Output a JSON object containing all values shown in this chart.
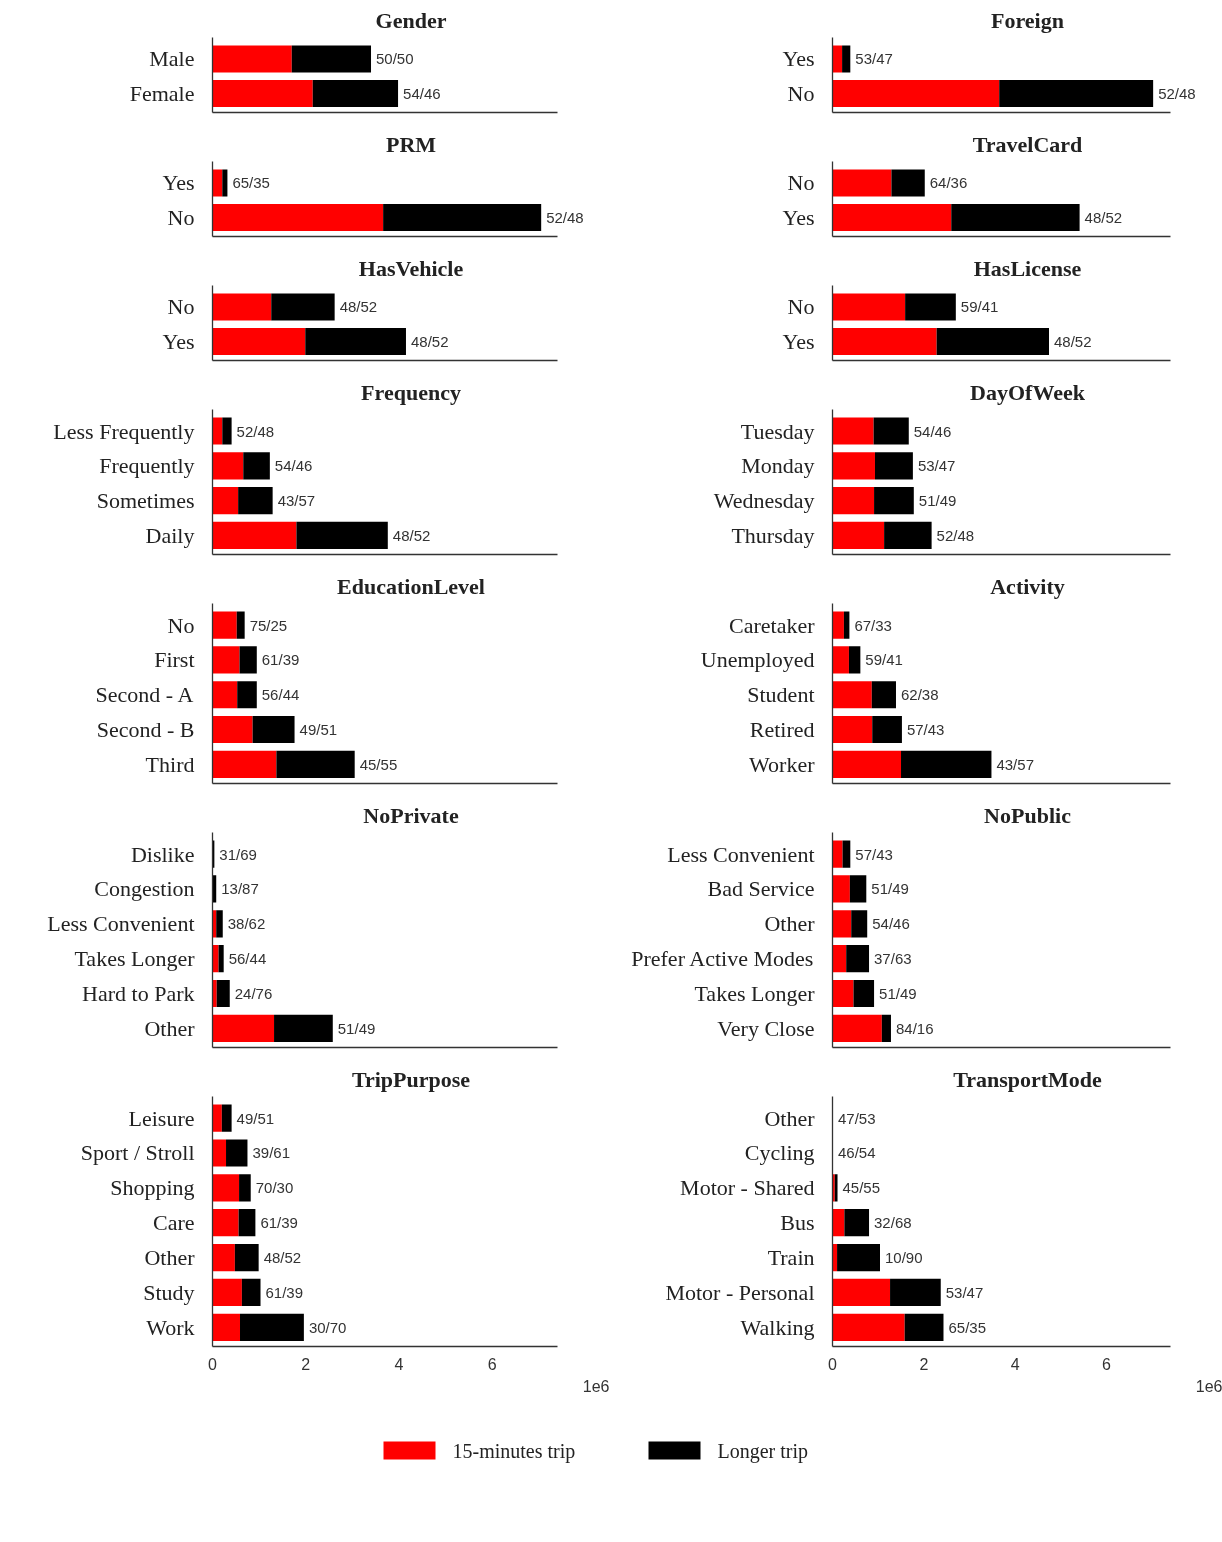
{
  "chart_data": [
    {
      "type": "bar",
      "orientation": "horizontal",
      "stacked": true,
      "title": "Gender",
      "categories": [
        "Male",
        "Female"
      ],
      "series": [
        {
          "color": "#ff0000",
          "values": [
            1.7,
            2.15
          ]
        },
        {
          "color": "#000000",
          "values": [
            1.7,
            1.83
          ],
          "value_labels": [
            "50/50",
            "54/46"
          ]
        }
      ],
      "xlim": [
        0,
        7.4
      ],
      "tick_labels": "y",
      "grid": false,
      "legend": false
    },
    {
      "type": "bar",
      "orientation": "horizontal",
      "stacked": true,
      "title": "Foreign",
      "categories": [
        "Yes",
        "No"
      ],
      "series": [
        {
          "color": "#ff0000",
          "values": [
            0.21,
            3.65
          ]
        },
        {
          "color": "#000000",
          "values": [
            0.18,
            3.37
          ],
          "value_labels": [
            "53/47",
            "52/48"
          ]
        }
      ],
      "xlim": [
        0,
        7.4
      ],
      "tick_labels": "y",
      "grid": false,
      "legend": false
    },
    {
      "type": "bar",
      "orientation": "horizontal",
      "stacked": true,
      "title": "PRM",
      "categories": [
        "Yes",
        "No"
      ],
      "series": [
        {
          "color": "#ff0000",
          "values": [
            0.21,
            3.66
          ]
        },
        {
          "color": "#000000",
          "values": [
            0.11,
            3.39
          ],
          "value_labels": [
            "65/35",
            "52/48"
          ]
        }
      ],
      "xlim": [
        0,
        7.4
      ],
      "tick_labels": "y",
      "grid": false,
      "legend": false
    },
    {
      "type": "bar",
      "orientation": "horizontal",
      "stacked": true,
      "title": "TravelCard",
      "categories": [
        "No",
        "Yes"
      ],
      "series": [
        {
          "color": "#ff0000",
          "values": [
            1.29,
            2.6
          ]
        },
        {
          "color": "#000000",
          "values": [
            0.73,
            2.81
          ],
          "value_labels": [
            "64/36",
            "48/52"
          ]
        }
      ],
      "xlim": [
        0,
        7.4
      ],
      "tick_labels": "y",
      "grid": false,
      "legend": false
    },
    {
      "type": "bar",
      "orientation": "horizontal",
      "stacked": true,
      "title": "HasVehicle",
      "categories": [
        "No",
        "Yes"
      ],
      "series": [
        {
          "color": "#ff0000",
          "values": [
            1.26,
            1.99
          ]
        },
        {
          "color": "#000000",
          "values": [
            1.36,
            2.16
          ],
          "value_labels": [
            "48/52",
            "48/52"
          ]
        }
      ],
      "xlim": [
        0,
        7.4
      ],
      "tick_labels": "y",
      "grid": false,
      "legend": false
    },
    {
      "type": "bar",
      "orientation": "horizontal",
      "stacked": true,
      "title": "HasLicense",
      "categories": [
        "No",
        "Yes"
      ],
      "series": [
        {
          "color": "#ff0000",
          "values": [
            1.59,
            2.28
          ]
        },
        {
          "color": "#000000",
          "values": [
            1.11,
            2.46
          ],
          "value_labels": [
            "59/41",
            "48/52"
          ]
        }
      ],
      "xlim": [
        0,
        7.4
      ],
      "tick_labels": "y",
      "grid": false,
      "legend": false
    },
    {
      "type": "bar",
      "orientation": "horizontal",
      "stacked": true,
      "title": "Frequency",
      "categories": [
        "Less Frequently",
        "Frequently",
        "Sometimes",
        "Daily"
      ],
      "series": [
        {
          "color": "#ff0000",
          "values": [
            0.21,
            0.66,
            0.55,
            1.8
          ]
        },
        {
          "color": "#000000",
          "values": [
            0.2,
            0.57,
            0.74,
            1.96
          ],
          "value_labels": [
            "52/48",
            "54/46",
            "43/57",
            "48/52"
          ]
        }
      ],
      "xlim": [
        0,
        7.4
      ],
      "tick_labels": "y",
      "grid": false,
      "legend": false
    },
    {
      "type": "bar",
      "orientation": "horizontal",
      "stacked": true,
      "title": "DayOfWeek",
      "categories": [
        "Tuesday",
        "Monday",
        "Wednesday",
        "Thursday"
      ],
      "series": [
        {
          "color": "#ff0000",
          "values": [
            0.9,
            0.93,
            0.91,
            1.13
          ]
        },
        {
          "color": "#000000",
          "values": [
            0.77,
            0.83,
            0.87,
            1.04
          ],
          "value_labels": [
            "54/46",
            "53/47",
            "51/49",
            "52/48"
          ]
        }
      ],
      "xlim": [
        0,
        7.4
      ],
      "tick_labels": "y",
      "grid": false,
      "legend": false
    },
    {
      "type": "bar",
      "orientation": "horizontal",
      "stacked": true,
      "title": "EducationLevel",
      "categories": [
        "No",
        "First",
        "Second - A",
        "Second - B",
        "Third"
      ],
      "series": [
        {
          "color": "#ff0000",
          "values": [
            0.52,
            0.58,
            0.53,
            0.86,
            1.37
          ]
        },
        {
          "color": "#000000",
          "values": [
            0.17,
            0.37,
            0.42,
            0.9,
            1.68
          ],
          "value_labels": [
            "75/25",
            "61/39",
            "56/44",
            "49/51",
            "45/55"
          ]
        }
      ],
      "xlim": [
        0,
        7.4
      ],
      "tick_labels": "y",
      "grid": false,
      "legend": false
    },
    {
      "type": "bar",
      "orientation": "horizontal",
      "stacked": true,
      "title": "Activity",
      "categories": [
        "Caretaker",
        "Unemployed",
        "Student",
        "Retired",
        "Worker"
      ],
      "series": [
        {
          "color": "#ff0000",
          "values": [
            0.25,
            0.36,
            0.86,
            0.87,
            1.5
          ]
        },
        {
          "color": "#000000",
          "values": [
            0.12,
            0.25,
            0.53,
            0.65,
            1.98
          ],
          "value_labels": [
            "67/33",
            "59/41",
            "62/38",
            "57/43",
            "43/57"
          ]
        }
      ],
      "xlim": [
        0,
        7.4
      ],
      "tick_labels": "y",
      "grid": false,
      "legend": false
    },
    {
      "type": "bar",
      "orientation": "horizontal",
      "stacked": true,
      "title": "NoPrivate",
      "categories": [
        "Dislike",
        "Congestion",
        "Less Convenient",
        "Takes Longer",
        "Hard to Park",
        "Other"
      ],
      "series": [
        {
          "color": "#ff0000",
          "values": [
            null,
            null,
            0.08,
            0.13,
            0.09,
            1.32
          ]
        },
        {
          "color": "#000000",
          "values": [
            0.04,
            0.08,
            0.14,
            0.11,
            0.28,
            1.26
          ],
          "value_labels": [
            "31/69",
            "13/87",
            "38/62",
            "56/44",
            "24/76",
            "51/49"
          ]
        }
      ],
      "xlim": [
        0,
        7.4
      ],
      "tick_labels": "y",
      "grid": false,
      "legend": false
    },
    {
      "type": "bar",
      "orientation": "horizontal",
      "stacked": true,
      "title": "NoPublic",
      "categories": [
        "Less Convenient",
        "Bad Service",
        "Other",
        "Prefer Active Modes",
        "Takes Longer",
        "Very Close"
      ],
      "series": [
        {
          "color": "#ff0000",
          "values": [
            0.22,
            0.38,
            0.41,
            0.3,
            0.46,
            1.08
          ]
        },
        {
          "color": "#000000",
          "values": [
            0.17,
            0.36,
            0.35,
            0.5,
            0.45,
            0.2
          ],
          "value_labels": [
            "57/43",
            "51/49",
            "54/46",
            "37/63",
            "51/49",
            "84/16"
          ]
        }
      ],
      "xlim": [
        0,
        7.4
      ],
      "tick_labels": "y",
      "grid": false,
      "legend": false
    },
    {
      "type": "bar",
      "orientation": "horizontal",
      "stacked": true,
      "title": "TripPurpose",
      "categories": [
        "Leisure",
        "Sport / Stroll",
        "Shopping",
        "Care",
        "Other",
        "Study",
        "Work"
      ],
      "series": [
        {
          "color": "#ff0000",
          "values": [
            0.2,
            0.29,
            0.57,
            0.56,
            0.48,
            0.63,
            0.59
          ]
        },
        {
          "color": "#000000",
          "values": [
            0.21,
            0.46,
            0.25,
            0.36,
            0.51,
            0.4,
            1.37
          ],
          "value_labels": [
            "49/51",
            "39/61",
            "70/30",
            "61/39",
            "48/52",
            "61/39",
            "30/70"
          ]
        }
      ],
      "xlim": [
        0,
        7.4
      ],
      "xticks": [
        0,
        2,
        4,
        6
      ],
      "annotations": [
        "1e6"
      ],
      "grid": false,
      "legend": false
    },
    {
      "type": "bar",
      "orientation": "horizontal",
      "stacked": true,
      "title": "TransportMode",
      "categories": [
        "Other",
        "Cycling",
        "Motor - Shared",
        "Bus",
        "Train",
        "Motor - Personal",
        "Walking"
      ],
      "series": [
        {
          "name": "15-minutes trip",
          "color": "#ff0000",
          "values": [
            null,
            null,
            0.05,
            0.26,
            0.1,
            1.26,
            1.58
          ]
        },
        {
          "name": "Longer trip",
          "color": "#000000",
          "values": [
            0.01,
            0.01,
            0.06,
            0.54,
            0.94,
            1.11,
            0.85
          ],
          "value_labels": [
            "47/53",
            "46/54",
            "45/55",
            "32/68",
            "10/90",
            "53/47",
            "65/35"
          ]
        }
      ],
      "xlim": [
        0,
        7.4
      ],
      "xticks": [
        0,
        2,
        4,
        6
      ],
      "annotations": [
        "1e6"
      ],
      "grid": false,
      "legend": "bottom"
    }
  ]
}
